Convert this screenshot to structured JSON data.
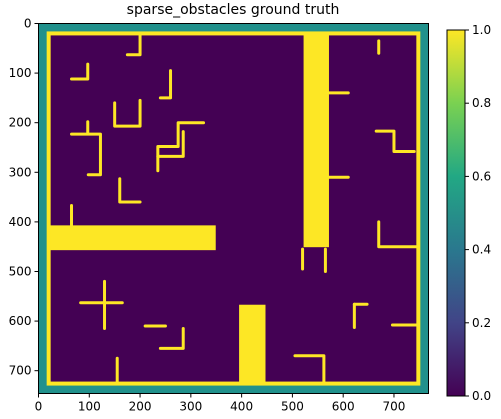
{
  "chart_data": {
    "type": "heatmap",
    "title": "sparse_obstacles ground truth",
    "xlabel": "",
    "ylabel": "",
    "xlim": [
      0,
      768
    ],
    "ylim": [
      746,
      0
    ],
    "x_ticks": [
      0,
      100,
      200,
      300,
      400,
      500,
      600,
      700
    ],
    "y_ticks": [
      0,
      100,
      200,
      300,
      400,
      500,
      600,
      700
    ],
    "grid": false,
    "colormap": "viridis",
    "background_value": 0.0,
    "obstacle_value": 1.0,
    "colors": {
      "background": "#440154",
      "obstacle": "#fde725",
      "outer_margin": "#21918c"
    },
    "colorbar": {
      "range": [
        0.0,
        1.0
      ],
      "ticks": [
        "0.0",
        "0.2",
        "0.4",
        "0.6",
        "0.8",
        "1.0"
      ],
      "stops": [
        "#440154",
        "#414487",
        "#2a788e",
        "#22a884",
        "#7ad151",
        "#fde725"
      ]
    },
    "border_rect": {
      "x0": 20,
      "y0": 20,
      "x1": 748,
      "y1": 726
    },
    "rects": [
      {
        "x0": 20,
        "y0": 407,
        "x1": 349,
        "y1": 457
      },
      {
        "x0": 522,
        "y0": 20,
        "x1": 572,
        "y1": 451
      },
      {
        "x0": 395,
        "y0": 567,
        "x1": 447,
        "y1": 726
      }
    ],
    "segments": [
      [
        [
          175,
          63
        ],
        [
          200,
          63
        ],
        [
          200,
          22
        ]
      ],
      [
        [
          65,
          112
        ],
        [
          97,
          112
        ],
        [
          97,
          82
        ]
      ],
      [
        [
          150,
          160
        ],
        [
          150,
          207
        ],
        [
          200,
          207
        ],
        [
          200,
          155
        ]
      ],
      [
        [
          240,
          150
        ],
        [
          260,
          150
        ],
        [
          260,
          95
        ]
      ],
      [
        [
          670,
          35
        ],
        [
          670,
          60
        ]
      ],
      [
        [
          572,
          140
        ],
        [
          610,
          140
        ]
      ],
      [
        [
          65,
          223
        ],
        [
          122,
          223
        ],
        [
          122,
          305
        ],
        [
          98,
          305
        ]
      ],
      [
        [
          97,
          198
        ],
        [
          97,
          222
        ]
      ],
      [
        [
          235,
          268
        ],
        [
          285,
          268
        ],
        [
          285,
          218
        ]
      ],
      [
        [
          235,
          297
        ],
        [
          235,
          248
        ],
        [
          275,
          248
        ],
        [
          275,
          200
        ],
        [
          325,
          200
        ]
      ],
      [
        [
          572,
          310
        ],
        [
          610,
          310
        ]
      ],
      [
        [
          665,
          217
        ],
        [
          700,
          217
        ],
        [
          700,
          258
        ],
        [
          740,
          258
        ]
      ],
      [
        [
          160,
          313
        ],
        [
          160,
          360
        ],
        [
          200,
          360
        ]
      ],
      [
        [
          65,
          367
        ],
        [
          65,
          410
        ]
      ],
      [
        [
          670,
          400
        ],
        [
          670,
          450
        ],
        [
          748,
          450
        ]
      ],
      [
        [
          520,
          455
        ],
        [
          520,
          495
        ]
      ],
      [
        [
          565,
          455
        ],
        [
          565,
          500
        ]
      ],
      [
        [
          83,
          563
        ],
        [
          165,
          563
        ]
      ],
      [
        [
          130,
          520
        ],
        [
          130,
          615
        ]
      ],
      [
        [
          210,
          610
        ],
        [
          250,
          610
        ]
      ],
      [
        [
          240,
          655
        ],
        [
          285,
          655
        ],
        [
          285,
          615
        ]
      ],
      [
        [
          622,
          566
        ],
        [
          647,
          566
        ]
      ],
      [
        [
          622,
          566
        ],
        [
          622,
          613
        ]
      ],
      [
        [
          697,
          608
        ],
        [
          748,
          608
        ]
      ],
      [
        [
          155,
          675
        ],
        [
          155,
          726
        ]
      ],
      [
        [
          505,
          670
        ],
        [
          562,
          670
        ],
        [
          562,
          726
        ]
      ]
    ]
  }
}
